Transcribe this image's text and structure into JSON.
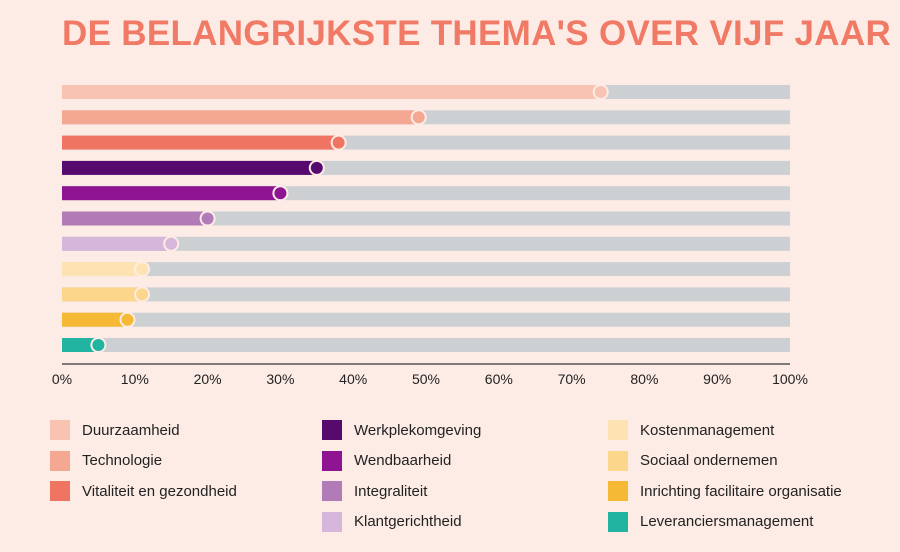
{
  "chart_data": {
    "type": "bar",
    "orientation": "horizontal",
    "title": "DE BELANGRIJKSTE THEMA'S OVER VIJF JAAR",
    "xlabel": "",
    "ylabel": "",
    "xlim": [
      0,
      100
    ],
    "x_ticks": [
      "0%",
      "10%",
      "20%",
      "30%",
      "40%",
      "50%",
      "60%",
      "70%",
      "80%",
      "90%",
      "100%"
    ],
    "grid": false,
    "legend_position": "bottom",
    "track_color": "#ccd0d3",
    "categories": [
      "Duurzaamheid",
      "Technologie",
      "Vitaliteit en gezondheid",
      "Werkplekomgeving",
      "Wendbaarheid",
      "Integraliteit",
      "Klantgerichtheid",
      "Kostenmanagement",
      "Sociaal ondernemen",
      "Inrichting facilitaire organisatie",
      "Leveranciersmanagement"
    ],
    "values": [
      74,
      49,
      38,
      35,
      30,
      20,
      15,
      11,
      11,
      9,
      5
    ],
    "colors": [
      "#f9c3b2",
      "#f5a891",
      "#f07462",
      "#560a6e",
      "#8f1491",
      "#b07bb6",
      "#d6b6da",
      "#fde3b1",
      "#fbd68b",
      "#f5b935",
      "#21b4a0"
    ]
  }
}
